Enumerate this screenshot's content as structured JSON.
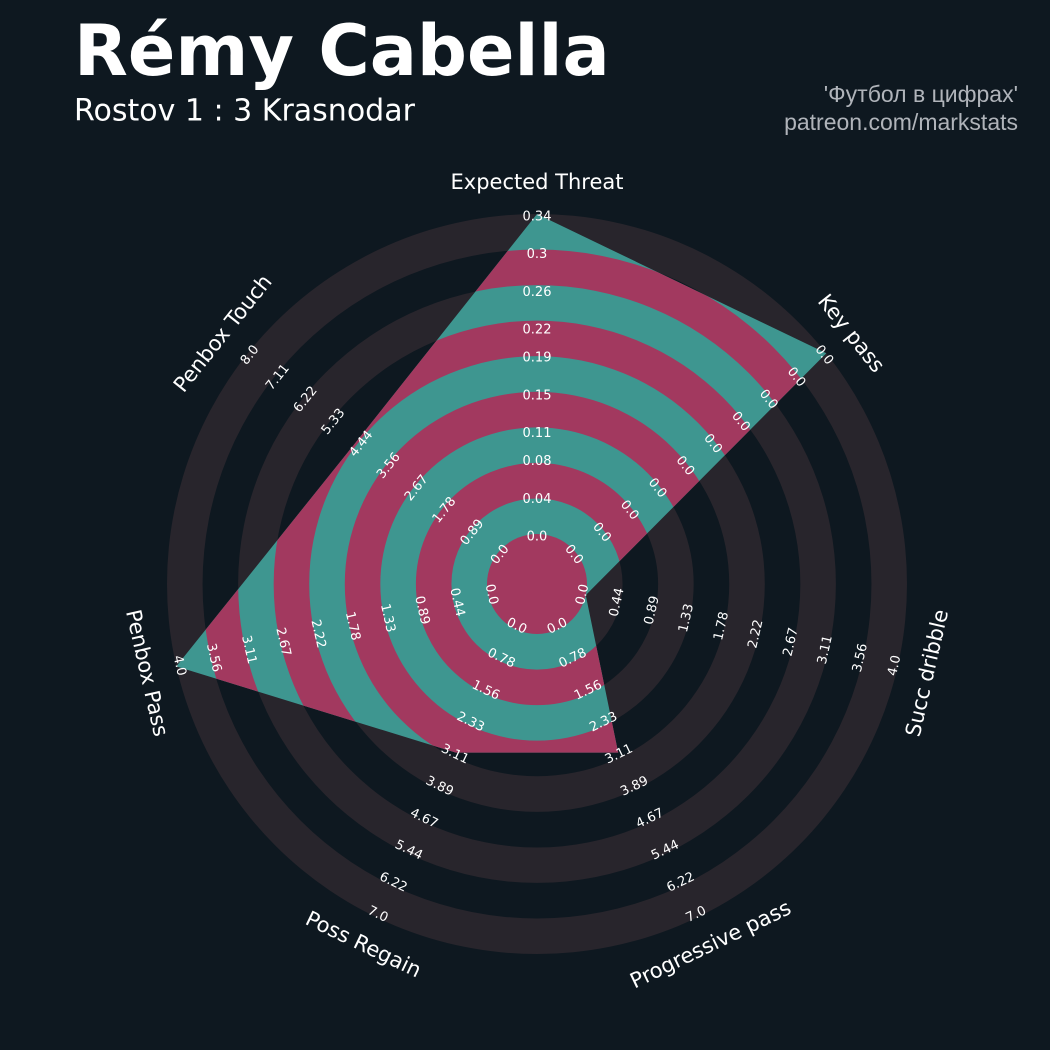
{
  "chart_data": {
    "type": "radar",
    "title": "Rémy Cabella",
    "subtitle": "Rostov 1 : 3 Krasnodar",
    "credits": [
      "'Футбол в цифрах'",
      "patreon.com/markstats"
    ],
    "categories": [
      "Expected Threat",
      "Key pass",
      "Succ dribble",
      "Progressive pass",
      "Poss Regain",
      "Penbox Pass",
      "Penbox Touch"
    ],
    "color": "#3e9690",
    "alt_color": "#a2395f",
    "series": [
      {
        "values": [
          0.34,
          0.045,
          0,
          3,
          3,
          4,
          4.5
        ]
      }
    ],
    "axes": [
      {
        "lim": [
          0,
          0.34
        ],
        "ticks": [
          {
            "value": 0,
            "label": "0.0"
          },
          0.04,
          0.08,
          0.11,
          0.15,
          0.19,
          0.22,
          0.26,
          0.3,
          0.34
        ]
      },
      {
        "lim": [
          0,
          0.045
        ],
        "ticks": [
          {
            "value": 0,
            "label": "0.0"
          },
          {
            "value": 0.005,
            "label": "0.0"
          },
          {
            "value": 0.01,
            "label": "0.0"
          },
          {
            "value": 0.015,
            "label": "0.0"
          },
          {
            "value": 0.02,
            "label": "0.0"
          },
          {
            "value": 0.025,
            "label": "0.0"
          },
          {
            "value": 0.03,
            "label": "0.0"
          },
          {
            "value": 0.035,
            "label": "0.0"
          },
          {
            "value": 0.04,
            "label": "0.0"
          },
          {
            "value": 0.045,
            "label": "0.0"
          }
        ]
      },
      {
        "lim": [
          0,
          4
        ],
        "ticks": [
          {
            "value": 0,
            "label": "0.0"
          },
          0.44,
          0.89,
          1.33,
          1.78,
          2.22,
          2.67,
          3.11,
          3.56,
          {
            "value": 4,
            "label": "4.0"
          }
        ]
      },
      {
        "lim": [
          0,
          7
        ],
        "ticks": [
          {
            "value": 0,
            "label": "0.0"
          },
          0.78,
          1.56,
          2.33,
          3.11,
          3.89,
          4.67,
          5.44,
          6.22,
          {
            "value": 7,
            "label": "7.0"
          }
        ]
      },
      {
        "lim": [
          0,
          7
        ],
        "ticks": [
          {
            "value": 0,
            "label": "0.0"
          },
          0.78,
          1.56,
          2.33,
          3.11,
          3.89,
          4.67,
          5.44,
          6.22,
          {
            "value": 7,
            "label": "7.0"
          }
        ]
      },
      {
        "lim": [
          0,
          4
        ],
        "ticks": [
          {
            "value": 0,
            "label": "0.0"
          },
          0.44,
          0.89,
          1.33,
          1.78,
          2.22,
          2.67,
          3.11,
          3.56,
          {
            "value": 4,
            "label": "4.0"
          }
        ]
      },
      {
        "lim": [
          0,
          8
        ],
        "ticks": [
          {
            "value": 0,
            "label": "0.0"
          },
          0.89,
          1.78,
          2.67,
          3.56,
          4.44,
          5.33,
          6.22,
          7.11,
          {
            "value": 8,
            "label": "8.0"
          }
        ]
      }
    ]
  }
}
